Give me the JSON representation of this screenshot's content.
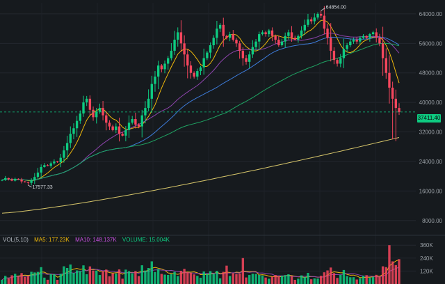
{
  "chart_data": {
    "type": "candlestick",
    "price_axis": {
      "ticks": [
        "64000.00",
        "56000.00",
        "48000.00",
        "40000.00",
        "32000.00",
        "24000.00",
        "16000.00",
        "8000.00"
      ],
      "tick_values": [
        64000,
        56000,
        48000,
        40000,
        32000,
        24000,
        16000,
        8000
      ],
      "ylim": [
        4000,
        67000
      ]
    },
    "volume_axis": {
      "ticks": [
        "360K",
        "240K",
        "120K"
      ],
      "tick_values": [
        360000,
        240000,
        120000
      ],
      "ylim": [
        0,
        400000
      ]
    },
    "current_price": {
      "label": "37411.40",
      "value": 37411.4
    },
    "annotations": {
      "high": {
        "label": "64854.00",
        "value": 64854,
        "index": 98
      },
      "low": {
        "label": "17577.33",
        "value": 17577,
        "index": 8
      }
    },
    "closes": [
      19000,
      19500,
      19200,
      18800,
      19300,
      19100,
      18600,
      18400,
      18200,
      18900,
      19800,
      21000,
      22500,
      23000,
      22800,
      23500,
      24000,
      23800,
      25000,
      27000,
      29000,
      31500,
      33000,
      35000,
      37000,
      40000,
      41000,
      38000,
      36000,
      37500,
      38500,
      36500,
      34500,
      33500,
      32500,
      33500,
      31500,
      31000,
      32500,
      34500,
      35500,
      34000,
      33500,
      36500,
      38500,
      41000,
      45000,
      47000,
      50000,
      49000,
      50500,
      52000,
      54000,
      57000,
      59000,
      56000,
      53000,
      50000,
      48000,
      47000,
      48500,
      49500,
      52000,
      53500,
      55500,
      57500,
      60000,
      61000,
      58000,
      57500,
      58500,
      57000,
      56000,
      54000,
      52000,
      51000,
      53000,
      55000,
      56500,
      58500,
      59000,
      58500,
      59500,
      58000,
      57000,
      55500,
      56500,
      58000,
      59000,
      57500,
      57000,
      58000,
      59500,
      61000,
      62500,
      62000,
      63000,
      64000,
      63500,
      60000,
      57500,
      54000,
      51500,
      50500,
      52000,
      54500,
      55500,
      56500,
      57000,
      56500,
      57500,
      58000,
      57500,
      58500,
      59000,
      57500,
      56000,
      52000,
      48000,
      44000,
      41000,
      38500,
      37411
    ]
  },
  "volume_legend": {
    "label": "VOL(5,10)",
    "ma5": "MA5: 177.23K",
    "ma10": "MA10: 148.137K",
    "volume": "VOLUME: 15.004K"
  },
  "colors": {
    "up": "#0ecb81",
    "down": "#f6465d",
    "ma7": "#f0b90b",
    "ma25": "#8e44ad",
    "ma99": "#3d7bd9",
    "ma_green": "#1fa463",
    "ma_yellow": "#d6c56a",
    "ma5_text": "#f0b90b",
    "ma10_text": "#c84fe0",
    "volume_text": "#0ecb81"
  }
}
